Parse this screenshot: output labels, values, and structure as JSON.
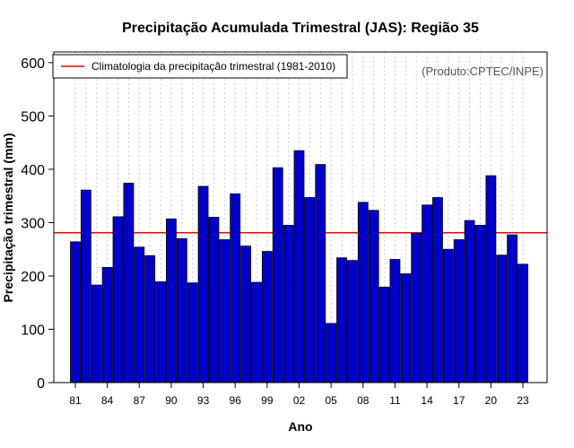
{
  "chart_data": {
    "type": "bar",
    "title": "Precipitação Acumulada Trimestral (JAS): Região 35",
    "xlabel": "Ano",
    "ylabel": "Precipitação trimestral (mm)",
    "source_note": "(Produto:CPTEC/INPE)",
    "ylim": [
      0,
      620
    ],
    "yticks": [
      0,
      100,
      200,
      300,
      400,
      500,
      600
    ],
    "categories": [
      "1981",
      "1982",
      "1983",
      "1984",
      "1985",
      "1986",
      "1987",
      "1988",
      "1989",
      "1990",
      "1991",
      "1992",
      "1993",
      "1994",
      "1995",
      "1996",
      "1997",
      "1998",
      "1999",
      "2000",
      "2001",
      "2002",
      "2003",
      "2004",
      "2005",
      "2006",
      "2007",
      "2008",
      "2009",
      "2010",
      "2011",
      "2012",
      "2013",
      "2014",
      "2015",
      "2016",
      "2017",
      "2018",
      "2019",
      "2020",
      "2021",
      "2022",
      "2023"
    ],
    "xtick_labels": [
      {
        "index": 0,
        "label": "81"
      },
      {
        "index": 3,
        "label": "84"
      },
      {
        "index": 6,
        "label": "87"
      },
      {
        "index": 9,
        "label": "90"
      },
      {
        "index": 12,
        "label": "93"
      },
      {
        "index": 15,
        "label": "96"
      },
      {
        "index": 18,
        "label": "99"
      },
      {
        "index": 21,
        "label": "02"
      },
      {
        "index": 24,
        "label": "05"
      },
      {
        "index": 27,
        "label": "08"
      },
      {
        "index": 30,
        "label": "11"
      },
      {
        "index": 33,
        "label": "14"
      },
      {
        "index": 36,
        "label": "17"
      },
      {
        "index": 39,
        "label": "20"
      },
      {
        "index": 42,
        "label": "23"
      }
    ],
    "series": [
      {
        "name": "Precipitação trimestral",
        "color": "#0000cc",
        "values": [
          264,
          361,
          183,
          216,
          311,
          374,
          254,
          238,
          189,
          307,
          270,
          187,
          368,
          310,
          268,
          354,
          256,
          188,
          246,
          403,
          295,
          435,
          347,
          409,
          111,
          234,
          229,
          338,
          323,
          179,
          231,
          204,
          280,
          333,
          347,
          250,
          268,
          304,
          295,
          388,
          239,
          277,
          222
        ]
      }
    ],
    "reference_line": {
      "label": "Climatologia da precipitação trimestral (1981-2010)",
      "value": 281,
      "color": "#ff0000"
    },
    "legend_position": "top-left",
    "grid": "vertical-dotted"
  }
}
